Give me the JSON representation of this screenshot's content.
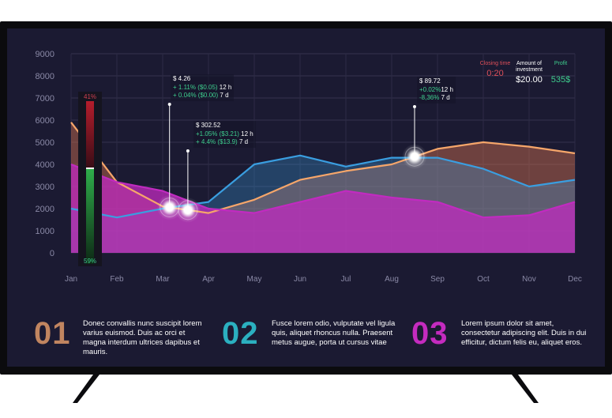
{
  "chart_data": {
    "type": "area",
    "categories": [
      "Jan",
      "Feb",
      "Mar",
      "Apr",
      "May",
      "Jun",
      "Jul",
      "Aug",
      "Sep",
      "Oct",
      "Nov",
      "Dec"
    ],
    "ylim": [
      0,
      9000
    ],
    "yticks": [
      "0",
      "1000",
      "2000",
      "3000",
      "4000",
      "5000",
      "6000",
      "7000",
      "8000",
      "9000"
    ],
    "grid": true,
    "series": [
      {
        "color": "#f6a66a",
        "values": [
          5900,
          3200,
          2100,
          1800,
          2400,
          3300,
          3700,
          4000,
          4700,
          5000,
          4800,
          4500
        ]
      },
      {
        "color": "#3a9ee0",
        "values": [
          2000,
          1600,
          2000,
          2300,
          4000,
          4400,
          3900,
          4300,
          4300,
          3800,
          3000,
          3300
        ]
      },
      {
        "color": "#c12bc0",
        "values": [
          4000,
          3200,
          2800,
          2000,
          1800,
          2300,
          2800,
          2500,
          2300,
          1600,
          1700,
          2300
        ]
      }
    ],
    "annotations": [
      {
        "line1": "$ 4.26",
        "line2": "+ 1.11% ($0.05)",
        "period2": "12 h",
        "line3": "+ 0.04% ($0.00)",
        "period3": "7 d"
      },
      {
        "line1": "$ 302.52",
        "line2": "+1.05% ($3.21)",
        "period2": "12 h",
        "line3": "+ 4.4% ($13.9)",
        "period3": "7 d"
      },
      {
        "line1": "$ 89.72",
        "line2": "+0.02%",
        "period2": "12 h",
        "line3": "-8,36%",
        "period3": "7 d"
      }
    ]
  },
  "volume": {
    "top": "41%",
    "bottom": "59%",
    "level": 0.59
  },
  "stats": [
    {
      "label": "Closing time",
      "value": "0:20",
      "color": "#e0505a"
    },
    {
      "label": "Amount of investment",
      "value": "$20.00",
      "color": "#ffffff"
    },
    {
      "label": "Profit",
      "value": "535$",
      "color": "#3ecf8e"
    }
  ],
  "info": [
    {
      "number": "01",
      "text": "Donec convallis nunc suscipit lorem varius euismod. Duis ac orci et magna interdum ultrices dapibus et mauris."
    },
    {
      "number": "02",
      "text": "Fusce lorem odio, vulputate vel ligula quis, aliquet rhoncus nulla. Praesent metus augue, porta ut cursus vitae"
    },
    {
      "number": "03",
      "text": "Lorem ipsum dolor sit amet, consectetur adipiscing elit. Duis in dui efficitur, dictum felis eu, aliquet eros."
    }
  ]
}
